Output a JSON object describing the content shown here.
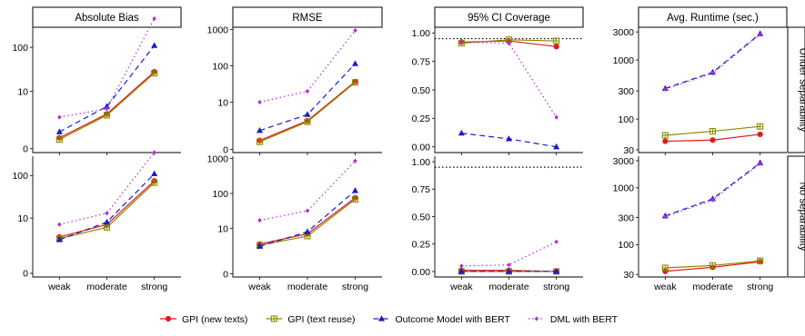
{
  "chart_data": {
    "type": "line",
    "categories": [
      "weak",
      "moderate",
      "strong"
    ],
    "panels": [
      {
        "title": "Absolute Bias",
        "scale": "asinh",
        "ticks": [
          0,
          10,
          100
        ],
        "tick_labels": [
          "0",
          "10",
          "100"
        ]
      },
      {
        "title": "RMSE",
        "scale": "asinh",
        "ticks": [
          0,
          10,
          100,
          1000
        ],
        "tick_labels": [
          "0",
          "10",
          "100",
          "1000"
        ]
      },
      {
        "title": "95% CI Coverage",
        "scale": "linear",
        "ylim": [
          0,
          1
        ],
        "ticks": [
          0,
          0.25,
          0.5,
          0.75,
          1
        ],
        "tick_labels": [
          "0.00",
          "0.25",
          "0.50",
          "0.75",
          "1.00"
        ],
        "reference_line": 0.95
      },
      {
        "title": "Avg. Runtime (sec.)",
        "scale": "log",
        "ticks": [
          30,
          100,
          300,
          1000,
          3000
        ],
        "tick_labels": [
          "30",
          "100",
          "300",
          "1000",
          "3000"
        ]
      }
    ],
    "rows": [
      "Under separability",
      "No separability"
    ],
    "series": [
      {
        "name": "GPI (new texts)",
        "color": "#e31a1c",
        "marker": "circle",
        "line": "solid"
      },
      {
        "name": "GPI (text reuse)",
        "color": "#8b8b00",
        "marker": "square-plus",
        "line": "solid"
      },
      {
        "name": "Outcome Model with BERT",
        "color": "#1a1acc",
        "marker": "triangle",
        "line": "dashed"
      },
      {
        "name": "DML with BERT",
        "color": "#b22bd6",
        "marker": "diamond",
        "line": "dotted"
      }
    ],
    "values": {
      "Under separability": {
        "Absolute Bias": [
          [
            0.6,
            3,
            28
          ],
          [
            0.5,
            2.8,
            26
          ],
          [
            1,
            4.5,
            110
          ],
          [
            2.5,
            4,
            450
          ]
        ],
        "RMSE": [
          [
            0.6,
            3,
            37
          ],
          [
            0.5,
            2.8,
            35
          ],
          [
            1.5,
            4.5,
            115
          ],
          [
            10,
            20,
            950
          ]
        ],
        "95% CI Coverage": [
          [
            0.92,
            0.93,
            0.88
          ],
          [
            0.91,
            0.94,
            0.93
          ],
          [
            0.12,
            0.07,
            0.0
          ],
          [
            0.92,
            0.91,
            0.26
          ]
        ],
        "Avg. Runtime (sec.)": [
          [
            42,
            44,
            55
          ],
          [
            53,
            62,
            75
          ],
          [
            330,
            620,
            2800
          ],
          [
            320,
            600,
            2700
          ]
        ]
      },
      "No separability": {
        "Absolute Bias": [
          [
            3.5,
            7,
            75
          ],
          [
            3.2,
            6,
            68
          ],
          [
            3,
            8,
            110
          ],
          [
            7,
            13,
            350
          ]
        ],
        "RMSE": [
          [
            3.5,
            7,
            75
          ],
          [
            3.2,
            6,
            68
          ],
          [
            3,
            8,
            120
          ],
          [
            17,
            32,
            850
          ]
        ],
        "95% CI Coverage": [
          [
            0.01,
            0.01,
            0.0
          ],
          [
            0.0,
            0.0,
            0.0
          ],
          [
            0.0,
            0.0,
            0.0
          ],
          [
            0.05,
            0.06,
            0.27
          ]
        ],
        "Avg. Runtime (sec.)": [
          [
            34,
            40,
            50
          ],
          [
            39,
            43,
            52
          ],
          [
            320,
            640,
            2750
          ],
          [
            310,
            610,
            2650
          ]
        ]
      }
    },
    "legend_position": "bottom"
  }
}
